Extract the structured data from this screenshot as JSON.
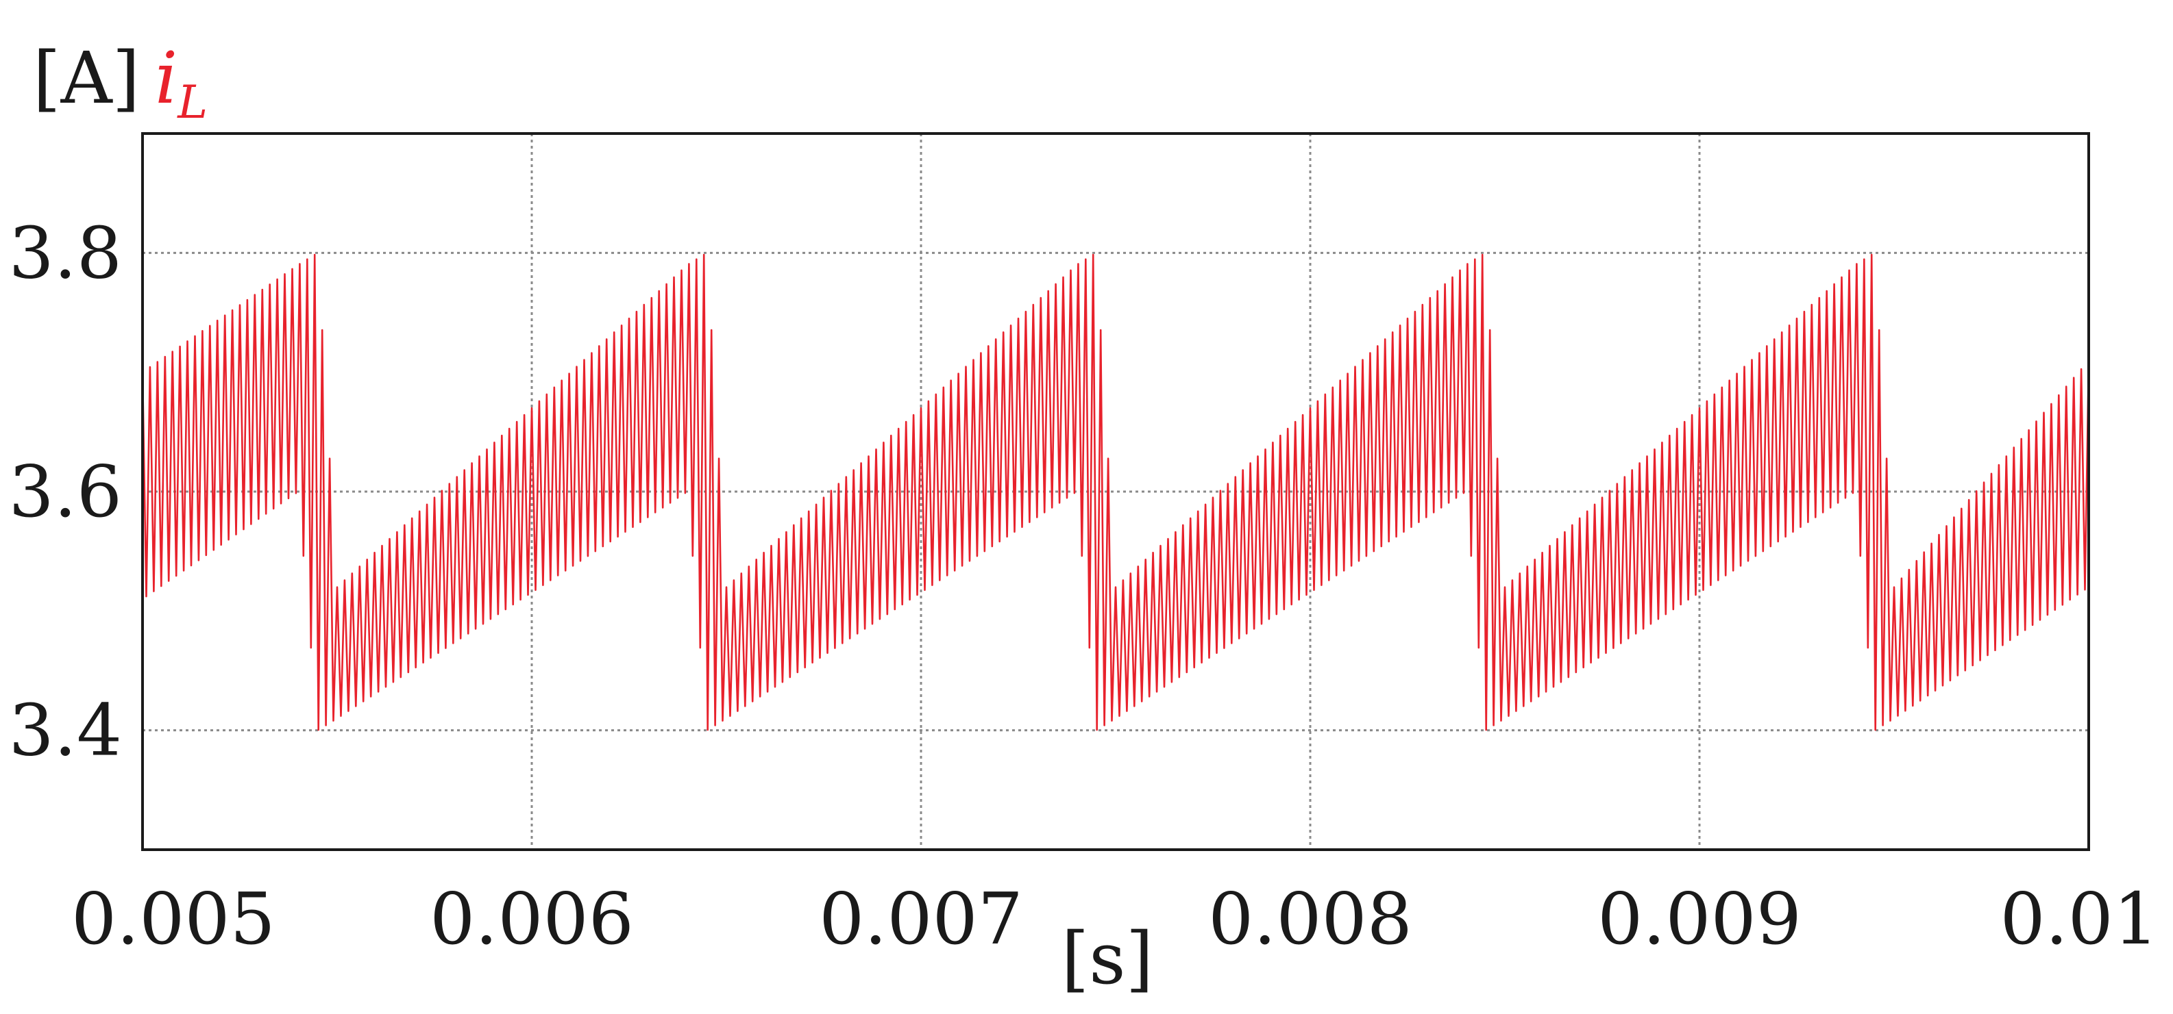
{
  "chart_data": {
    "type": "line",
    "title": "",
    "xlabel": "[s]",
    "ylabel": "[A]",
    "xlim": [
      0.005,
      0.01
    ],
    "ylim": [
      3.3,
      3.9
    ],
    "xticks": [
      0.005,
      0.006,
      0.007,
      0.008,
      0.009,
      0.01
    ],
    "xtick_labels": [
      "0.005",
      "0.006",
      "0.007",
      "0.008",
      "0.009",
      "0.01"
    ],
    "yticks": [
      3.4,
      3.6,
      3.8
    ],
    "ytick_labels": [
      "3.4",
      "3.6",
      "3.8"
    ],
    "grid": true,
    "legend": "top-left",
    "series": [
      {
        "name": "i",
        "name_subscript": "L",
        "color": "#e8222c",
        "description_x": [
          0.005,
          0.0054,
          0.00545,
          0.0055,
          0.0064,
          0.00645,
          0.0065,
          0.0074,
          0.00745,
          0.0075,
          0.0084,
          0.00845,
          0.0085,
          0.0094,
          0.00945,
          0.0095,
          0.01
        ],
        "upper_envelope": [
          3.7,
          3.79,
          3.8,
          3.52,
          3.79,
          3.8,
          3.52,
          3.79,
          3.8,
          3.52,
          3.79,
          3.8,
          3.52,
          3.79,
          3.8,
          3.52,
          3.71
        ],
        "lower_envelope": [
          3.51,
          3.6,
          3.4,
          3.41,
          3.6,
          3.4,
          3.41,
          3.6,
          3.4,
          3.41,
          3.6,
          3.4,
          3.41,
          3.6,
          3.4,
          3.41,
          3.52
        ]
      }
    ]
  }
}
